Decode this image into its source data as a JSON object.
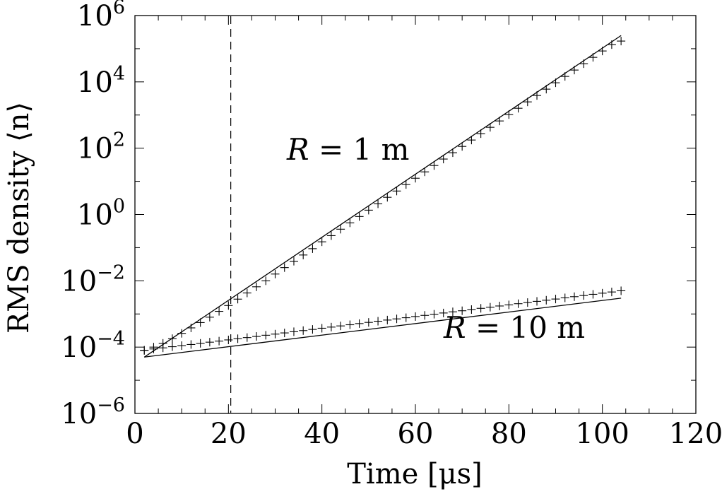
{
  "chart_data": {
    "type": "scatter",
    "title": "",
    "xlabel": "Time [μs]",
    "ylabel": "RMS density ⟨n⟩",
    "xlim": [
      0,
      120
    ],
    "ylim": [
      1e-06,
      1000000.0
    ],
    "yscale": "log",
    "grid": false,
    "x_ticks": [
      0,
      20,
      40,
      60,
      80,
      100,
      120
    ],
    "y_ticks": [
      {
        "base": "10",
        "exp": "6",
        "value": 1000000.0
      },
      {
        "base": "10",
        "exp": "4",
        "value": 10000.0
      },
      {
        "base": "10",
        "exp": "2",
        "value": 100.0
      },
      {
        "base": "10",
        "exp": "0",
        "value": 1
      },
      {
        "base": "10",
        "exp": "−2",
        "value": 0.01
      },
      {
        "base": "10",
        "exp": "−4",
        "value": 0.0001
      },
      {
        "base": "10",
        "exp": "−6",
        "value": 1e-06
      }
    ],
    "vertical_marker": {
      "x": 20.5,
      "style": "dashed"
    },
    "annotations": [
      {
        "var": "R",
        "rest": " = 1 m"
      },
      {
        "var": "R",
        "rest": " = 10 m"
      }
    ],
    "series": [
      {
        "marker": "+",
        "x": [
          2,
          4,
          6,
          8,
          10,
          12,
          14,
          16,
          18,
          20,
          22,
          24,
          26,
          28,
          30,
          32,
          34,
          36,
          38,
          40,
          42,
          44,
          46,
          48,
          50,
          52,
          54,
          56,
          58,
          60,
          62,
          64,
          66,
          68,
          70,
          72,
          74,
          76,
          78,
          80,
          82,
          84,
          86,
          88,
          90,
          92,
          94,
          96,
          98,
          100,
          102,
          104
        ],
        "y": [
          8e-05,
          0.0001,
          0.00013,
          0.00018,
          0.00026,
          0.00038,
          0.00055,
          0.0008,
          0.0012,
          0.0018,
          0.0028,
          0.0043,
          0.0066,
          0.01,
          0.016,
          0.025,
          0.039,
          0.06,
          0.093,
          0.15,
          0.23,
          0.36,
          0.56,
          0.87,
          1.35,
          2.1,
          3.3,
          5.1,
          8,
          12.4,
          19.3,
          30,
          47,
          73,
          113,
          176,
          274,
          426,
          662,
          1030,
          1600,
          2490,
          3880,
          6030,
          9380,
          14600,
          22700,
          35300,
          54900,
          85400,
          133000,
          170000
        ]
      },
      {
        "marker": "+",
        "x": [
          2,
          4,
          6,
          8,
          10,
          12,
          14,
          16,
          18,
          20,
          22,
          24,
          26,
          28,
          30,
          32,
          34,
          36,
          38,
          40,
          42,
          44,
          46,
          48,
          50,
          52,
          54,
          56,
          58,
          60,
          62,
          64,
          66,
          68,
          70,
          72,
          74,
          76,
          78,
          80,
          82,
          84,
          86,
          88,
          90,
          92,
          94,
          96,
          98,
          100,
          102,
          104
        ],
        "y": [
          8e-05,
          8.8e-05,
          9.5e-05,
          0.000103,
          0.000111,
          0.00012,
          0.00013,
          0.000141,
          0.000152,
          0.000165,
          0.000179,
          0.000194,
          0.00021,
          0.000228,
          0.000247,
          0.000268,
          0.000291,
          0.000315,
          0.000342,
          0.000371,
          0.000402,
          0.000436,
          0.000473,
          0.000513,
          0.000557,
          0.000604,
          0.000655,
          0.00071,
          0.00077,
          0.000836,
          0.000906,
          0.000983,
          0.00107,
          0.00116,
          0.00125,
          0.00136,
          0.00148,
          0.0016,
          0.00174,
          0.00188,
          0.00204,
          0.00221,
          0.0024,
          0.0026,
          0.00282,
          0.00306,
          0.00332,
          0.0036,
          0.00391,
          0.00424,
          0.0046,
          0.005
        ]
      }
    ],
    "fit_lines": [
      {
        "x": [
          2,
          104
        ],
        "y": [
          5e-05,
          250000
        ]
      },
      {
        "x": [
          2,
          104
        ],
        "y": [
          5e-05,
          0.003
        ]
      }
    ]
  }
}
